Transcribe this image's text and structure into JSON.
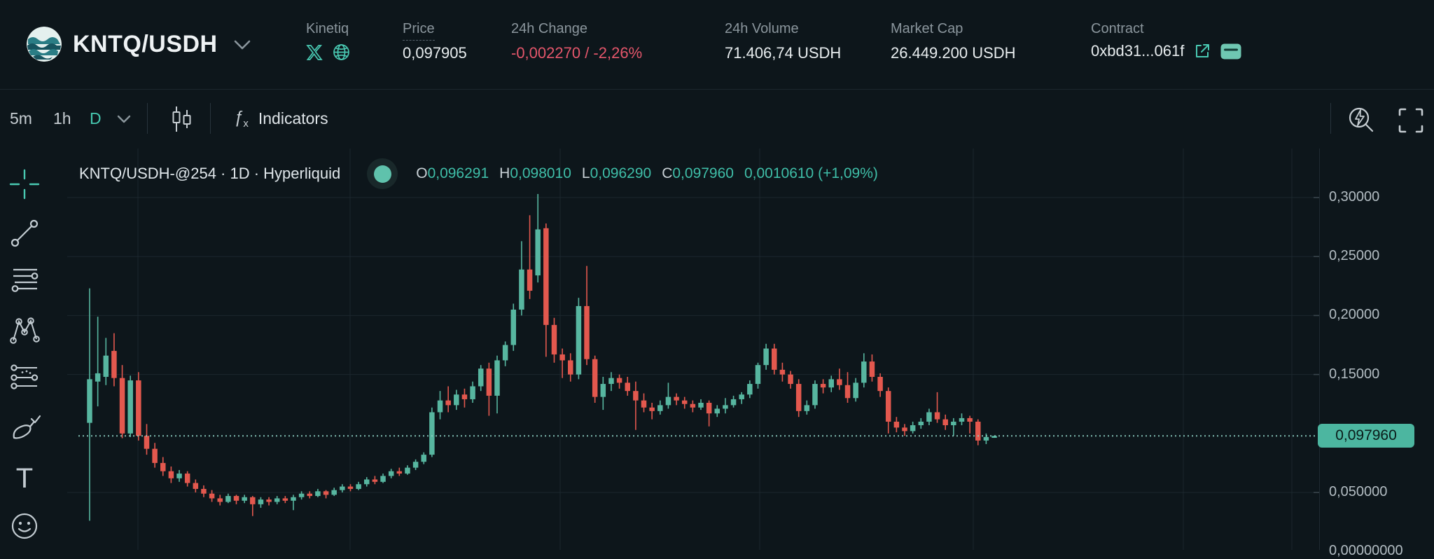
{
  "header": {
    "pair": "KNTQ/USDH",
    "project": {
      "name": "Kinetiq"
    },
    "stats": [
      {
        "label": "Price",
        "value": "0,097905"
      },
      {
        "label": "24h Change",
        "value": "-0,002270 / -2,26%"
      },
      {
        "label": "24h Volume",
        "value": "71.406,74 USDH"
      },
      {
        "label": "Market Cap",
        "value": "26.449.200 USDH"
      },
      {
        "label": "Contract",
        "value": "0xbd31...061f"
      }
    ]
  },
  "toolbar": {
    "timeframes": [
      "5m",
      "1h",
      "D"
    ],
    "active_timeframe": "D",
    "indicators_label": "Indicators"
  },
  "legend": {
    "title": "KNTQ/USDH-@254 · 1D · Hyperliquid",
    "o_label": "O",
    "o": "0,096291",
    "h_label": "H",
    "h": "0,098010",
    "l_label": "L",
    "l": "0,096290",
    "c_label": "C",
    "c": "0,097960",
    "change": "0,0010610 (+1,09%)"
  },
  "colors": {
    "background": "#0d161b",
    "accent_teal": "#46c8b0",
    "candle_up": "#57b6a0",
    "candle_down": "#e3584e",
    "negative_text": "#e4566b",
    "grid": "#1b272e",
    "dotted_price_line": "#8ed2c4",
    "badge_bg": "#4cb6a0"
  },
  "sidebar_tools": [
    "crosshair",
    "trend-line",
    "horizontal-lines",
    "xabcd-pattern",
    "fib-retracement",
    "brush",
    "text",
    "emoji"
  ],
  "chart_data": {
    "type": "candlestick",
    "symbol": "KNTQ/USDH-@254",
    "interval": "1D",
    "exchange": "Hyperliquid",
    "last_bar": {
      "open": "0,096291",
      "high": "0,098010",
      "low": "0,096290",
      "close": "0,097960",
      "change": "0,0010610 (+1,09%)"
    },
    "y_axis": {
      "ticks": [
        "0,30000",
        "0,25000",
        "0,20000",
        "0,15000",
        "0,050000",
        "0,00000000"
      ],
      "tick_prices": [
        0.3,
        0.25,
        0.2,
        0.15,
        0.05,
        0.0
      ],
      "grid_prices": [
        0.3,
        0.25,
        0.2,
        0.15,
        0.05
      ],
      "current_price_label": "0,097960",
      "current_price": 0.09796,
      "visible_range": [
        0.0,
        0.32
      ]
    },
    "grid": true,
    "current_price_line": "dotted",
    "candles_ohlc": [
      [
        0.109,
        0.223,
        0.026,
        0.146
      ],
      [
        0.144,
        0.199,
        0.123,
        0.151
      ],
      [
        0.148,
        0.181,
        0.141,
        0.166
      ],
      [
        0.17,
        0.185,
        0.14,
        0.147
      ],
      [
        0.147,
        0.158,
        0.096,
        0.1
      ],
      [
        0.1,
        0.149,
        0.097,
        0.145
      ],
      [
        0.145,
        0.152,
        0.094,
        0.098
      ],
      [
        0.098,
        0.108,
        0.082,
        0.087
      ],
      [
        0.087,
        0.092,
        0.071,
        0.075
      ],
      [
        0.075,
        0.08,
        0.064,
        0.068
      ],
      [
        0.068,
        0.072,
        0.058,
        0.062
      ],
      [
        0.062,
        0.069,
        0.059,
        0.066
      ],
      [
        0.066,
        0.068,
        0.055,
        0.058
      ],
      [
        0.058,
        0.061,
        0.05,
        0.053
      ],
      [
        0.053,
        0.056,
        0.046,
        0.049
      ],
      [
        0.049,
        0.052,
        0.042,
        0.045
      ],
      [
        0.045,
        0.048,
        0.039,
        0.042
      ],
      [
        0.042,
        0.049,
        0.041,
        0.047
      ],
      [
        0.047,
        0.048,
        0.04,
        0.043
      ],
      [
        0.043,
        0.048,
        0.041,
        0.046
      ],
      [
        0.046,
        0.047,
        0.03,
        0.04
      ],
      [
        0.04,
        0.046,
        0.037,
        0.044
      ],
      [
        0.044,
        0.046,
        0.039,
        0.042
      ],
      [
        0.042,
        0.047,
        0.04,
        0.045
      ],
      [
        0.045,
        0.047,
        0.041,
        0.043
      ],
      [
        0.043,
        0.048,
        0.035,
        0.046
      ],
      [
        0.046,
        0.051,
        0.044,
        0.049
      ],
      [
        0.049,
        0.051,
        0.045,
        0.047
      ],
      [
        0.047,
        0.053,
        0.046,
        0.051
      ],
      [
        0.051,
        0.052,
        0.045,
        0.048
      ],
      [
        0.048,
        0.054,
        0.047,
        0.052
      ],
      [
        0.052,
        0.057,
        0.05,
        0.055
      ],
      [
        0.055,
        0.057,
        0.051,
        0.053
      ],
      [
        0.053,
        0.059,
        0.052,
        0.057
      ],
      [
        0.057,
        0.063,
        0.055,
        0.061
      ],
      [
        0.061,
        0.064,
        0.057,
        0.059
      ],
      [
        0.059,
        0.066,
        0.058,
        0.064
      ],
      [
        0.064,
        0.07,
        0.062,
        0.068
      ],
      [
        0.068,
        0.071,
        0.064,
        0.066
      ],
      [
        0.066,
        0.073,
        0.065,
        0.071
      ],
      [
        0.071,
        0.078,
        0.069,
        0.076
      ],
      [
        0.076,
        0.084,
        0.074,
        0.082
      ],
      [
        0.082,
        0.122,
        0.08,
        0.118
      ],
      [
        0.118,
        0.136,
        0.112,
        0.128
      ],
      [
        0.128,
        0.14,
        0.118,
        0.124
      ],
      [
        0.124,
        0.137,
        0.12,
        0.133
      ],
      [
        0.133,
        0.138,
        0.122,
        0.129
      ],
      [
        0.129,
        0.144,
        0.126,
        0.14
      ],
      [
        0.14,
        0.158,
        0.136,
        0.155
      ],
      [
        0.155,
        0.16,
        0.115,
        0.132
      ],
      [
        0.132,
        0.166,
        0.117,
        0.162
      ],
      [
        0.162,
        0.178,
        0.157,
        0.175
      ],
      [
        0.175,
        0.21,
        0.17,
        0.205
      ],
      [
        0.205,
        0.263,
        0.2,
        0.239
      ],
      [
        0.239,
        0.285,
        0.214,
        0.221
      ],
      [
        0.234,
        0.303,
        0.228,
        0.273
      ],
      [
        0.274,
        0.278,
        0.165,
        0.192
      ],
      [
        0.192,
        0.198,
        0.16,
        0.167
      ],
      [
        0.167,
        0.172,
        0.147,
        0.162
      ],
      [
        0.162,
        0.168,
        0.144,
        0.15
      ],
      [
        0.15,
        0.215,
        0.146,
        0.208
      ],
      [
        0.208,
        0.242,
        0.158,
        0.163
      ],
      [
        0.163,
        0.166,
        0.126,
        0.131
      ],
      [
        0.131,
        0.148,
        0.12,
        0.142
      ],
      [
        0.142,
        0.152,
        0.136,
        0.147
      ],
      [
        0.147,
        0.15,
        0.138,
        0.143
      ],
      [
        0.143,
        0.148,
        0.132,
        0.136
      ],
      [
        0.136,
        0.144,
        0.103,
        0.128
      ],
      [
        0.128,
        0.134,
        0.118,
        0.122
      ],
      [
        0.122,
        0.126,
        0.112,
        0.119
      ],
      [
        0.119,
        0.128,
        0.116,
        0.124
      ],
      [
        0.124,
        0.143,
        0.121,
        0.131
      ],
      [
        0.131,
        0.134,
        0.124,
        0.128
      ],
      [
        0.128,
        0.131,
        0.121,
        0.125
      ],
      [
        0.125,
        0.128,
        0.118,
        0.122
      ],
      [
        0.122,
        0.129,
        0.12,
        0.126
      ],
      [
        0.126,
        0.128,
        0.106,
        0.117
      ],
      [
        0.117,
        0.124,
        0.114,
        0.121
      ],
      [
        0.121,
        0.13,
        0.117,
        0.124
      ],
      [
        0.124,
        0.132,
        0.122,
        0.129
      ],
      [
        0.129,
        0.135,
        0.125,
        0.133
      ],
      [
        0.133,
        0.145,
        0.13,
        0.142
      ],
      [
        0.142,
        0.16,
        0.138,
        0.158
      ],
      [
        0.158,
        0.176,
        0.154,
        0.172
      ],
      [
        0.172,
        0.176,
        0.15,
        0.154
      ],
      [
        0.154,
        0.16,
        0.144,
        0.15
      ],
      [
        0.15,
        0.153,
        0.138,
        0.142
      ],
      [
        0.142,
        0.146,
        0.114,
        0.119
      ],
      [
        0.119,
        0.128,
        0.116,
        0.124
      ],
      [
        0.124,
        0.145,
        0.121,
        0.142
      ],
      [
        0.142,
        0.146,
        0.134,
        0.139
      ],
      [
        0.139,
        0.149,
        0.135,
        0.146
      ],
      [
        0.146,
        0.155,
        0.137,
        0.141
      ],
      [
        0.141,
        0.152,
        0.126,
        0.13
      ],
      [
        0.13,
        0.147,
        0.127,
        0.143
      ],
      [
        0.143,
        0.168,
        0.139,
        0.161
      ],
      [
        0.161,
        0.167,
        0.144,
        0.148
      ],
      [
        0.148,
        0.151,
        0.131,
        0.136
      ],
      [
        0.136,
        0.139,
        0.1,
        0.11
      ],
      [
        0.11,
        0.114,
        0.101,
        0.105
      ],
      [
        0.105,
        0.108,
        0.098,
        0.102
      ],
      [
        0.102,
        0.11,
        0.1,
        0.107
      ],
      [
        0.107,
        0.113,
        0.104,
        0.11
      ],
      [
        0.11,
        0.121,
        0.107,
        0.118
      ],
      [
        0.118,
        0.135,
        0.109,
        0.112
      ],
      [
        0.112,
        0.116,
        0.103,
        0.107
      ],
      [
        0.107,
        0.113,
        0.098,
        0.11
      ],
      [
        0.11,
        0.117,
        0.107,
        0.113
      ],
      [
        0.113,
        0.115,
        0.1,
        0.11
      ],
      [
        0.11,
        0.112,
        0.09,
        0.094
      ],
      [
        0.094,
        0.1,
        0.091,
        0.097
      ],
      [
        0.096291,
        0.09801,
        0.09629,
        0.09796
      ]
    ]
  }
}
